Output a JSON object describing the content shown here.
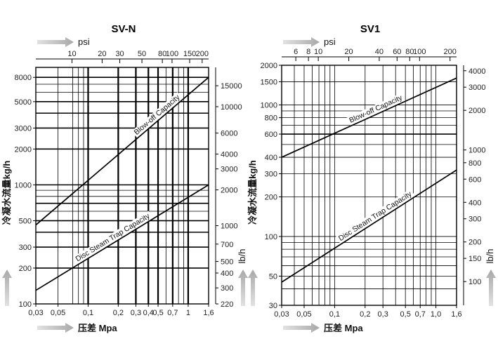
{
  "chart_data": [
    {
      "type": "line",
      "title": "SV-N",
      "x_axis": {
        "label": "压差 Mpa",
        "scale": "log",
        "range": [
          0.03,
          1.6
        ],
        "ticks": [
          0.03,
          0.05,
          0.1,
          0.2,
          0.3,
          0.4,
          0.5,
          0.7,
          1,
          1.6
        ],
        "tick_labels": [
          "0,03",
          "0,05",
          "0,1",
          "0,2",
          "0,3",
          "0,4",
          "0,5",
          "0,7",
          "1",
          "1,6"
        ]
      },
      "top_axis": {
        "label": "psi",
        "scale": "log",
        "range": [
          4.35,
          232
        ],
        "ticks": [
          10,
          20,
          30,
          50,
          80,
          100,
          150,
          200
        ],
        "tick_labels": [
          "10",
          "20",
          "30",
          "50",
          "80",
          "100",
          "150",
          "200"
        ]
      },
      "left_axis": {
        "label": "冷凝水流量kg/h",
        "scale": "log",
        "range": [
          100,
          9700
        ],
        "ticks": [
          100,
          200,
          300,
          500,
          1000,
          2000,
          3000,
          5000,
          8000
        ],
        "tick_labels": [
          "100",
          "200",
          "300",
          "500",
          "1000",
          "2000",
          "3000",
          "5000",
          "8000"
        ]
      },
      "right_axis": {
        "label": "lb/h",
        "scale": "log",
        "range": [
          220,
          21400
        ],
        "ticks": [
          220,
          300,
          400,
          500,
          700,
          1000,
          2000,
          3000,
          4000,
          6000,
          10000,
          15000
        ],
        "tick_labels": [
          "220",
          "300",
          "400",
          "500",
          "700",
          "1000",
          "2000",
          "3000",
          "4000",
          "6000",
          "10000",
          "15000"
        ]
      },
      "series": [
        {
          "name": "Blow-off Capacity",
          "x": [
            0.03,
            1.6
          ],
          "y": [
            460,
            8000
          ]
        },
        {
          "name": "Disc Steam Trap Capacity",
          "x": [
            0.03,
            1.6
          ],
          "y": [
            130,
            1000
          ]
        }
      ],
      "grid": true
    },
    {
      "type": "line",
      "title": "SV1",
      "x_axis": {
        "label": "压差 Mpa",
        "scale": "log",
        "range": [
          0.03,
          1.6
        ],
        "ticks": [
          0.03,
          0.05,
          0.1,
          0.2,
          0.3,
          0.5,
          0.7,
          1,
          1.6
        ],
        "tick_labels": [
          "0,03",
          "0,05",
          "0,1",
          "0,2",
          "0,3",
          "0,5",
          "0,7",
          "1,0",
          "1,6"
        ]
      },
      "top_axis": {
        "label": "psi",
        "scale": "log",
        "range": [
          4.35,
          232
        ],
        "ticks": [
          6,
          8,
          10,
          20,
          40,
          60,
          80,
          100,
          200
        ],
        "tick_labels": [
          "6",
          "8",
          "10",
          "20",
          "40",
          "60",
          "80",
          "100",
          "200"
        ]
      },
      "left_axis": {
        "label": "冷凝水流量kg/h",
        "scale": "log",
        "range": [
          30,
          2000
        ],
        "ticks": [
          30,
          50,
          100,
          200,
          300,
          400,
          600,
          800,
          1000,
          1500,
          2000
        ],
        "tick_labels": [
          "30",
          "50",
          "100",
          "200",
          "300",
          "400",
          "600",
          "800",
          "1000",
          "1500",
          "2000"
        ]
      },
      "right_axis": {
        "label": "lb/h",
        "scale": "log",
        "range": [
          66,
          4400
        ],
        "ticks": [
          100,
          150,
          200,
          300,
          400,
          600,
          800,
          1000,
          2000,
          3000,
          4000
        ],
        "tick_labels": [
          "100",
          "150",
          "200",
          "300",
          "400",
          "600",
          "800",
          "1000",
          "2000",
          "3000",
          "4000"
        ]
      },
      "series": [
        {
          "name": "Blow-off Capacity",
          "x": [
            0.03,
            1.6
          ],
          "y": [
            400,
            1600
          ]
        },
        {
          "name": "Disc Steam Trap Capacity",
          "x": [
            0.03,
            1.6
          ],
          "y": [
            45,
            320
          ]
        }
      ],
      "grid": true
    }
  ]
}
